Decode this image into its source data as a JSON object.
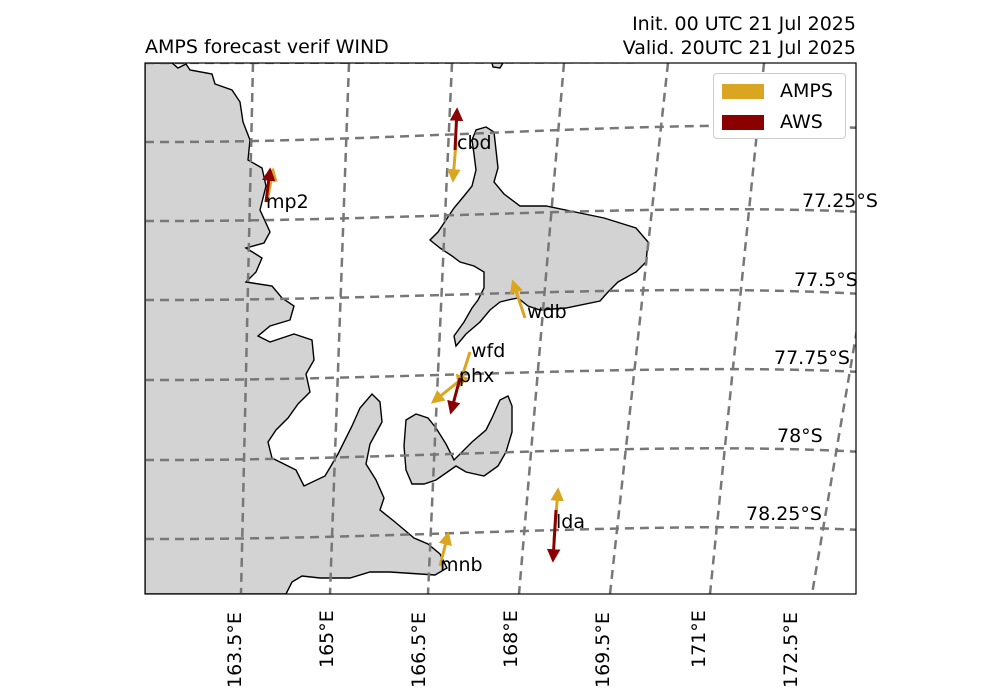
{
  "title": "AMPS forecast verif WIND",
  "init_line": "Init. 00 UTC 21 Jul 2025",
  "valid_line": "Valid. 20UTC 21 Jul 2025",
  "colors": {
    "amps": "#DAA520",
    "aws": "#8B0000",
    "land": "#D3D3D3",
    "coast": "#000000",
    "grid": "#777777"
  },
  "legend": [
    {
      "label": "AMPS",
      "color": "#DAA520"
    },
    {
      "label": "AWS",
      "color": "#8B0000"
    }
  ],
  "latitude_labels": [
    "77.25°S",
    "77.5°S",
    "77.75°S",
    "78°S",
    "78.25°S"
  ],
  "longitude_labels": [
    "163.5°E",
    "165°E",
    "166.5°E",
    "168°E",
    "169.5°E",
    "171°E",
    "172.5°E"
  ],
  "stations": [
    {
      "id": "mp2",
      "label": "mp2",
      "amps_vector": true,
      "aws_vector": true
    },
    {
      "id": "cbd",
      "label": "cbd",
      "amps_vector": true,
      "aws_vector": true
    },
    {
      "id": "wdb",
      "label": "wdb",
      "amps_vector": true,
      "aws_vector": false
    },
    {
      "id": "wfd",
      "label": "wfd",
      "amps_vector": true,
      "aws_vector": false
    },
    {
      "id": "phx",
      "label": "phx",
      "amps_vector": false,
      "aws_vector": true
    },
    {
      "id": "lda",
      "label": "lda",
      "amps_vector": true,
      "aws_vector": true
    },
    {
      "id": "mnb",
      "label": "mnb",
      "amps_vector": true,
      "aws_vector": false
    }
  ]
}
